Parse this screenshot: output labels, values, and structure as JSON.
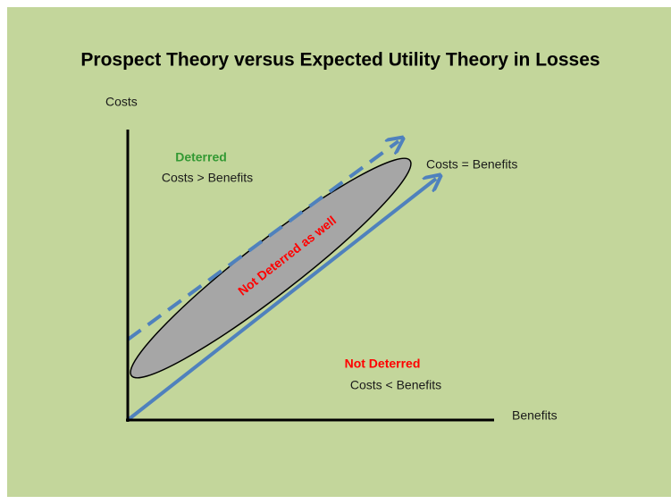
{
  "title": "Prospect Theory versus Expected Utility Theory in Losses",
  "y_axis_label": "Costs",
  "x_axis_label": "Benefits",
  "deterred": {
    "label": "Deterred",
    "condition": "Costs > Benefits"
  },
  "equal_line_label": "Costs = Benefits",
  "ellipse_label": "Not Deterred as well",
  "not_deterred": {
    "label": "Not Deterred",
    "condition": "Costs < Benefits"
  }
}
